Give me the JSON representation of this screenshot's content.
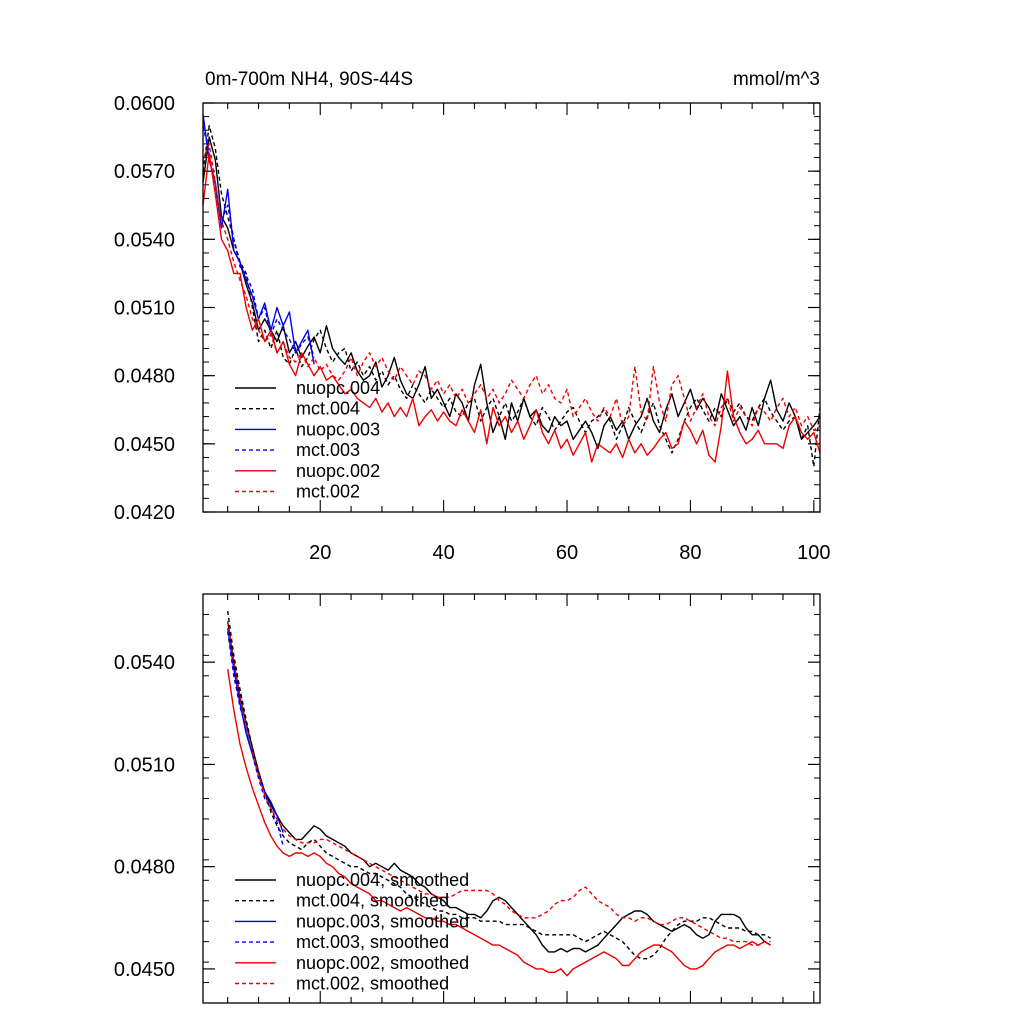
{
  "chart_data": [
    {
      "type": "line",
      "title": "0m-700m NH4, 90S-44S",
      "units": "mmol/m^3",
      "xlim": [
        1,
        101
      ],
      "ylim": [
        0.042,
        0.06
      ],
      "yticks": [
        "0.0420",
        "0.0450",
        "0.0480",
        "0.0510",
        "0.0540",
        "0.0570",
        "0.0600"
      ],
      "xticks": [
        "20",
        "40",
        "60",
        "80",
        "100"
      ],
      "legend_position": "lower-left",
      "series": [
        {
          "name": "nuopc.004",
          "color": "#000000",
          "dash": "solid",
          "x0": 1,
          "values": [
            0.0565,
            0.0585,
            0.0575,
            0.055,
            0.0545,
            0.0535,
            0.053,
            0.052,
            0.0512,
            0.05,
            0.0505,
            0.05,
            0.0495,
            0.0502,
            0.049,
            0.0495,
            0.0488,
            0.0493,
            0.0497,
            0.049,
            0.0502,
            0.0492,
            0.0488,
            0.0485,
            0.049,
            0.0482,
            0.0478,
            0.048,
            0.0486,
            0.0475,
            0.048,
            0.0488,
            0.0478,
            0.0472,
            0.047,
            0.0476,
            0.0484,
            0.047,
            0.0474,
            0.0468,
            0.0462,
            0.0472,
            0.0468,
            0.046,
            0.0476,
            0.0485,
            0.0468,
            0.0455,
            0.0462,
            0.0452,
            0.0468,
            0.046,
            0.047,
            0.0462,
            0.0465,
            0.0458,
            0.0455,
            0.0462,
            0.0458,
            0.046,
            0.0452,
            0.0456,
            0.046,
            0.0455,
            0.0448,
            0.0458,
            0.0462,
            0.0456,
            0.046,
            0.0452,
            0.0458,
            0.0462,
            0.047,
            0.046,
            0.0455,
            0.0465,
            0.0472,
            0.0462,
            0.0468,
            0.0474,
            0.0465,
            0.047,
            0.0466,
            0.046,
            0.0472,
            0.0465,
            0.0458,
            0.0462,
            0.0456,
            0.0466,
            0.0458,
            0.047,
            0.0478,
            0.0465,
            0.046,
            0.0468,
            0.0462,
            0.0452,
            0.0455,
            0.0458,
            0.0462
          ]
        },
        {
          "name": "mct.004",
          "color": "#000000",
          "dash": "dashed",
          "x0": 1,
          "values": [
            0.057,
            0.059,
            0.058,
            0.056,
            0.055,
            0.054,
            0.053,
            0.0525,
            0.051,
            0.0495,
            0.05,
            0.0492,
            0.05,
            0.0488,
            0.0485,
            0.0492,
            0.0484,
            0.0488,
            0.0496,
            0.05,
            0.0492,
            0.0486,
            0.049,
            0.0492,
            0.0482,
            0.0486,
            0.048,
            0.0484,
            0.0478,
            0.0482,
            0.0476,
            0.048,
            0.0474,
            0.047,
            0.0476,
            0.0472,
            0.0468,
            0.0474,
            0.047,
            0.0466,
            0.047,
            0.0464,
            0.0462,
            0.0468,
            0.047,
            0.046,
            0.0466,
            0.047,
            0.0462,
            0.0468,
            0.046,
            0.0464,
            0.047,
            0.0462,
            0.0458,
            0.0466,
            0.0462,
            0.0456,
            0.046,
            0.0464,
            0.0466,
            0.046,
            0.0455,
            0.046,
            0.0462,
            0.0465,
            0.046,
            0.0452,
            0.0458,
            0.0466,
            0.046,
            0.0455,
            0.0462,
            0.0468,
            0.0458,
            0.0452,
            0.0446,
            0.0452,
            0.046,
            0.0466,
            0.047,
            0.0465,
            0.046,
            0.0466,
            0.0462,
            0.047,
            0.0464,
            0.0468,
            0.0462,
            0.046,
            0.0466,
            0.047,
            0.0464,
            0.046,
            0.0456,
            0.046,
            0.0462,
            0.0452,
            0.0458,
            0.044,
            0.0466
          ]
        },
        {
          "name": "nuopc.003",
          "color": "#0000ee",
          "dash": "solid",
          "x0": 1,
          "values": [
            0.0595,
            0.0575,
            0.0565,
            0.0545,
            0.0562,
            0.0535,
            0.053,
            0.0522,
            0.0515,
            0.0505,
            0.0512,
            0.05,
            0.051,
            0.0502,
            0.0508,
            0.049,
            0.0495,
            0.05,
            0.0485
          ]
        },
        {
          "name": "mct.003",
          "color": "#0000ee",
          "dash": "dashed",
          "x0": 1,
          "values": [
            0.059,
            0.0578,
            0.056,
            0.0548,
            0.0555,
            0.054,
            0.0528,
            0.0524,
            0.0518,
            0.0505,
            0.051,
            0.0498,
            0.0505,
            0.05,
            0.0496,
            0.049,
            0.0494,
            0.0497,
            0.0488
          ]
        },
        {
          "name": "nuopc.002",
          "color": "#ee0000",
          "dash": "solid",
          "x0": 1,
          "values": [
            0.0555,
            0.0578,
            0.056,
            0.054,
            0.0535,
            0.0525,
            0.0525,
            0.051,
            0.05,
            0.0505,
            0.0495,
            0.05,
            0.049,
            0.0495,
            0.0485,
            0.048,
            0.049,
            0.0485,
            0.048,
            0.0484,
            0.0478,
            0.048,
            0.0476,
            0.0472,
            0.0474,
            0.047,
            0.0468,
            0.0466,
            0.047,
            0.0464,
            0.0468,
            0.0462,
            0.0466,
            0.0462,
            0.047,
            0.0458,
            0.0462,
            0.0465,
            0.046,
            0.0464,
            0.046,
            0.0458,
            0.0465,
            0.046,
            0.0455,
            0.0465,
            0.045,
            0.0466,
            0.0458,
            0.0462,
            0.0455,
            0.046,
            0.0452,
            0.0458,
            0.0465,
            0.0455,
            0.045,
            0.0456,
            0.0448,
            0.0452,
            0.0445,
            0.045,
            0.0455,
            0.0442,
            0.045,
            0.0448,
            0.0446,
            0.045,
            0.0444,
            0.0452,
            0.0446,
            0.045,
            0.0445,
            0.0448,
            0.0452,
            0.0455,
            0.0448,
            0.045,
            0.046,
            0.0456,
            0.045,
            0.0456,
            0.0445,
            0.0442,
            0.0458,
            0.0482,
            0.0462,
            0.0455,
            0.045,
            0.0452,
            0.0456,
            0.045,
            0.045,
            0.045,
            0.0448,
            0.0458,
            0.0462,
            0.0455,
            0.0452,
            0.0455,
            0.0446
          ]
        },
        {
          "name": "mct.002",
          "color": "#ee0000",
          "dash": "dashed",
          "x0": 1,
          "values": [
            0.0575,
            0.0582,
            0.0565,
            0.0548,
            0.054,
            0.053,
            0.0522,
            0.0515,
            0.0505,
            0.05,
            0.0495,
            0.0498,
            0.049,
            0.0495,
            0.0488,
            0.0486,
            0.049,
            0.0484,
            0.0488,
            0.0482,
            0.0485,
            0.048,
            0.0478,
            0.0482,
            0.0488,
            0.048,
            0.0486,
            0.049,
            0.0484,
            0.0488,
            0.0482,
            0.0478,
            0.0484,
            0.048,
            0.0476,
            0.0482,
            0.048,
            0.0474,
            0.0478,
            0.0472,
            0.0476,
            0.047,
            0.0474,
            0.0468,
            0.0472,
            0.0476,
            0.047,
            0.0474,
            0.0468,
            0.0472,
            0.0478,
            0.0474,
            0.047,
            0.0476,
            0.048,
            0.0472,
            0.0476,
            0.047,
            0.0468,
            0.0474,
            0.0462,
            0.0466,
            0.047,
            0.0464,
            0.046,
            0.0466,
            0.0462,
            0.047,
            0.0458,
            0.0462,
            0.0484,
            0.0464,
            0.046,
            0.0484,
            0.0468,
            0.046,
            0.0476,
            0.048,
            0.047,
            0.046,
            0.0466,
            0.0472,
            0.0462,
            0.0458,
            0.0466,
            0.047,
            0.046,
            0.0466,
            0.0462,
            0.0458,
            0.0466,
            0.0464,
            0.046,
            0.0466,
            0.047,
            0.0462,
            0.0466,
            0.0458,
            0.0462,
            0.0456,
            0.0458
          ]
        }
      ]
    },
    {
      "type": "line",
      "title": "",
      "xlim": [
        1,
        101
      ],
      "ylim": [
        0.044,
        0.056
      ],
      "yticks": [
        "0.0450",
        "0.0480",
        "0.0510",
        "0.0540"
      ],
      "xticks": [],
      "legend_position": "lower-left",
      "series": [
        {
          "name": "nuopc.004, smoothed",
          "color": "#000000",
          "dash": "solid",
          "x0": 5,
          "values": [
            0.0552,
            0.054,
            0.053,
            0.0522,
            0.0515,
            0.0508,
            0.0502,
            0.0498,
            0.0495,
            0.0492,
            0.049,
            0.0488,
            0.0488,
            0.049,
            0.0492,
            0.0491,
            0.0489,
            0.0488,
            0.0487,
            0.0486,
            0.0484,
            0.0483,
            0.0482,
            0.048,
            0.0481,
            0.048,
            0.0479,
            0.0481,
            0.0479,
            0.0478,
            0.0477,
            0.0475,
            0.0474,
            0.0472,
            0.0471,
            0.047,
            0.0468,
            0.0468,
            0.0467,
            0.0466,
            0.0466,
            0.0465,
            0.0467,
            0.047,
            0.0471,
            0.047,
            0.0468,
            0.0466,
            0.0464,
            0.0462,
            0.046,
            0.0457,
            0.0455,
            0.0455,
            0.0456,
            0.0455,
            0.0456,
            0.0456,
            0.0455,
            0.0456,
            0.0457,
            0.0459,
            0.0461,
            0.0463,
            0.0465,
            0.0466,
            0.0467,
            0.0467,
            0.0466,
            0.0464,
            0.0463,
            0.0462,
            0.0461,
            0.0462,
            0.0463,
            0.0462,
            0.046,
            0.0459,
            0.046,
            0.0464,
            0.0466,
            0.0466,
            0.0466,
            0.0465,
            0.0462,
            0.046,
            0.046,
            0.0458,
            0.0457
          ]
        },
        {
          "name": "mct.004, smoothed",
          "color": "#000000",
          "dash": "dashed",
          "x0": 5,
          "values": [
            0.0555,
            0.0542,
            0.0532,
            0.0523,
            0.0515,
            0.0507,
            0.0502,
            0.0496,
            0.0492,
            0.0489,
            0.0487,
            0.0486,
            0.0485,
            0.0487,
            0.0488,
            0.0486,
            0.0484,
            0.0483,
            0.0482,
            0.0481,
            0.048,
            0.048,
            0.0479,
            0.0478,
            0.0478,
            0.0477,
            0.0476,
            0.0475,
            0.0474,
            0.0472,
            0.0471,
            0.047,
            0.0469,
            0.0468,
            0.0467,
            0.0467,
            0.0466,
            0.0466,
            0.0465,
            0.0465,
            0.0465,
            0.0464,
            0.0464,
            0.0464,
            0.0464,
            0.0463,
            0.0463,
            0.0463,
            0.0463,
            0.0462,
            0.0461,
            0.046,
            0.046,
            0.046,
            0.046,
            0.046,
            0.046,
            0.0459,
            0.0458,
            0.0459,
            0.046,
            0.0461,
            0.046,
            0.0459,
            0.0458,
            0.0456,
            0.0454,
            0.0453,
            0.0453,
            0.0454,
            0.0456,
            0.0459,
            0.0461,
            0.0463,
            0.0464,
            0.0464,
            0.0464,
            0.0465,
            0.0465,
            0.0464,
            0.0463,
            0.0462,
            0.0462,
            0.0462,
            0.0461,
            0.0461,
            0.046,
            0.046,
            0.0459
          ]
        },
        {
          "name": "nuopc.003, smoothed",
          "color": "#0000ee",
          "dash": "solid",
          "x0": 5,
          "values": [
            0.055,
            0.0538,
            0.0528,
            0.0519,
            0.0513,
            0.0507,
            0.0502,
            0.0499,
            0.0495,
            0.049
          ]
        },
        {
          "name": "mct.003, smoothed",
          "color": "#0000ee",
          "dash": "dashed",
          "x0": 5,
          "values": [
            0.0549,
            0.0536,
            0.0527,
            0.052,
            0.0513,
            0.0506,
            0.05,
            0.0497,
            0.0493,
            0.0486
          ]
        },
        {
          "name": "nuopc.002, smoothed",
          "color": "#ee0000",
          "dash": "solid",
          "x0": 5,
          "values": [
            0.0538,
            0.0526,
            0.0516,
            0.0509,
            0.0503,
            0.0498,
            0.0493,
            0.0489,
            0.0486,
            0.0484,
            0.0483,
            0.0484,
            0.0484,
            0.0483,
            0.0484,
            0.0483,
            0.0481,
            0.048,
            0.0478,
            0.0477,
            0.0475,
            0.0474,
            0.0473,
            0.0472,
            0.047,
            0.047,
            0.0469,
            0.0468,
            0.0467,
            0.0468,
            0.0467,
            0.0466,
            0.0465,
            0.0465,
            0.0464,
            0.0464,
            0.0463,
            0.0463,
            0.0462,
            0.0461,
            0.046,
            0.0459,
            0.0458,
            0.0457,
            0.0457,
            0.0456,
            0.0455,
            0.0454,
            0.0452,
            0.0451,
            0.045,
            0.045,
            0.0449,
            0.0449,
            0.045,
            0.0448,
            0.045,
            0.0451,
            0.0452,
            0.0453,
            0.0454,
            0.0455,
            0.0454,
            0.0453,
            0.0451,
            0.0451,
            0.0453,
            0.0455,
            0.0456,
            0.0457,
            0.0457,
            0.0456,
            0.0455,
            0.0453,
            0.0451,
            0.045,
            0.045,
            0.0451,
            0.0453,
            0.0455,
            0.0456,
            0.0457,
            0.0457,
            0.0456,
            0.0457,
            0.0458,
            0.0457,
            0.0458,
            0.0457
          ]
        },
        {
          "name": "mct.002, smoothed",
          "color": "#ee0000",
          "dash": "dashed",
          "x0": 5,
          "values": [
            0.0552,
            0.054,
            0.053,
            0.0521,
            0.0514,
            0.0507,
            0.0501,
            0.0497,
            0.0494,
            0.0491,
            0.0489,
            0.0488,
            0.0487,
            0.0487,
            0.0487,
            0.0488,
            0.0488,
            0.0487,
            0.0486,
            0.0485,
            0.0484,
            0.0483,
            0.0482,
            0.0481,
            0.048,
            0.0479,
            0.0478,
            0.0477,
            0.0476,
            0.0475,
            0.0474,
            0.0473,
            0.0472,
            0.0472,
            0.0471,
            0.0471,
            0.0471,
            0.0472,
            0.0473,
            0.0473,
            0.0473,
            0.0473,
            0.0473,
            0.0472,
            0.047,
            0.0469,
            0.0467,
            0.0466,
            0.0465,
            0.0465,
            0.0465,
            0.0466,
            0.0467,
            0.0469,
            0.047,
            0.047,
            0.0471,
            0.0473,
            0.0474,
            0.0472,
            0.047,
            0.0469,
            0.0468,
            0.0466,
            0.0465,
            0.0465,
            0.0464,
            0.0465,
            0.0465,
            0.0464,
            0.0463,
            0.0463,
            0.0464,
            0.0465,
            0.0465,
            0.0464,
            0.0463,
            0.0462,
            0.0461,
            0.046,
            0.0459,
            0.0459,
            0.0458,
            0.0458,
            0.0458,
            0.0457,
            0.0457,
            0.0458,
            0.0458
          ]
        }
      ]
    }
  ]
}
